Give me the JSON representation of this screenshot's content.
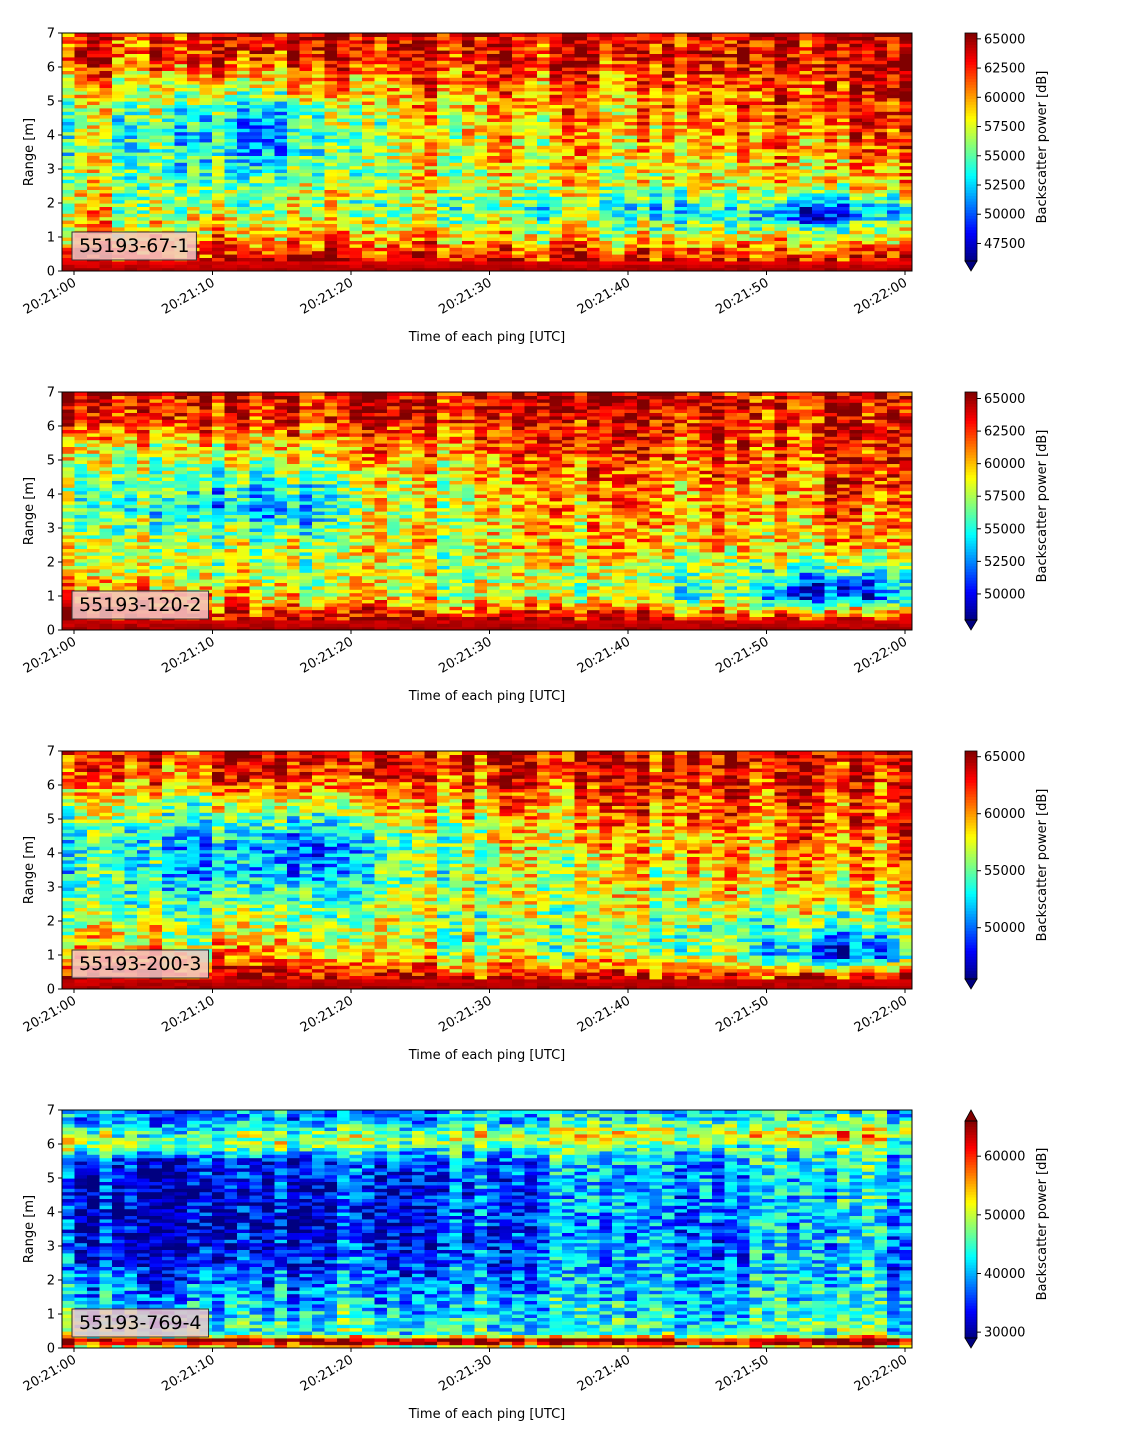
{
  "figure": {
    "x_axis_label": "Time of each ping [UTC]",
    "y_axis_label": "Range [m]",
    "colorbar_label": "Backscatter power [dB]",
    "x_tick_labels": [
      "20:21:00",
      "20:21:10",
      "20:21:20",
      "20:21:30",
      "20:21:40",
      "20:21:50",
      "20:22:00"
    ],
    "y_tick_labels": [
      "0",
      "1",
      "2",
      "3",
      "4",
      "5",
      "6",
      "7"
    ]
  },
  "chart_data": [
    {
      "type": "heatmap",
      "panel_label": "55193-67-1",
      "colormap": "jet",
      "x_range": [
        "20:21:00",
        "20:22:00"
      ],
      "ylim": [
        0,
        7
      ],
      "color_range": [
        46000,
        65500
      ],
      "colorbar_ticks": [
        47500,
        50000,
        52500,
        55000,
        57500,
        60000,
        62500,
        65000
      ],
      "colorbar_extend": "min",
      "xlabel": "Time of each ping [UTC]",
      "ylabel": "Range [m]",
      "zlabel": "Backscatter power [dB]",
      "profile": {
        "range_m": [
          0,
          0.3,
          1,
          1.8,
          2.5,
          3.5,
          4.5,
          5.5,
          6.2,
          7
        ],
        "start_frac": [
          0.97,
          0.9,
          0.72,
          0.62,
          0.56,
          0.5,
          0.52,
          0.65,
          0.82,
          0.88
        ],
        "end_frac": [
          0.97,
          0.9,
          0.6,
          0.3,
          0.62,
          0.75,
          0.82,
          0.85,
          0.9,
          0.9
        ]
      },
      "features": [
        {
          "t_center_s": 14,
          "range_center_m": 4.0,
          "t_width_s": 7,
          "range_width_m": 1.3,
          "delta": -0.3
        },
        {
          "t_center_s": 54,
          "range_center_m": 1.7,
          "t_width_s": 3,
          "range_width_m": 0.35,
          "delta": -0.3
        }
      ]
    },
    {
      "type": "heatmap",
      "panel_label": "55193-120-2",
      "colormap": "jet",
      "x_range": [
        "20:21:00",
        "20:22:00"
      ],
      "ylim": [
        0,
        7
      ],
      "color_range": [
        48000,
        65500
      ],
      "colorbar_ticks": [
        50000,
        52500,
        55000,
        57500,
        60000,
        62500,
        65000
      ],
      "colorbar_extend": "min",
      "xlabel": "Time of each ping [UTC]",
      "ylabel": "Range [m]",
      "zlabel": "Backscatter power [dB]",
      "profile": {
        "range_m": [
          0,
          0.3,
          1,
          1.8,
          2.5,
          3.5,
          4.5,
          5.5,
          6.2,
          7
        ],
        "start_frac": [
          0.97,
          0.92,
          0.75,
          0.6,
          0.55,
          0.45,
          0.48,
          0.62,
          0.82,
          0.88
        ],
        "end_frac": [
          0.97,
          0.92,
          0.35,
          0.5,
          0.7,
          0.8,
          0.85,
          0.88,
          0.9,
          0.9
        ]
      },
      "features": [
        {
          "t_center_s": 14,
          "range_center_m": 3.8,
          "t_width_s": 6,
          "range_width_m": 1.0,
          "delta": -0.25
        },
        {
          "t_center_s": 55,
          "range_center_m": 1.2,
          "t_width_s": 4,
          "range_width_m": 0.5,
          "delta": -0.3
        }
      ]
    },
    {
      "type": "heatmap",
      "panel_label": "55193-200-3",
      "colormap": "jet",
      "x_range": [
        "20:21:00",
        "20:22:00"
      ],
      "ylim": [
        0,
        7
      ],
      "color_range": [
        45500,
        65500
      ],
      "colorbar_ticks": [
        50000,
        55000,
        60000,
        65000
      ],
      "colorbar_extend": "min",
      "xlabel": "Time of each ping [UTC]",
      "ylabel": "Range [m]",
      "zlabel": "Backscatter power [dB]",
      "profile": {
        "range_m": [
          0,
          0.3,
          1,
          1.8,
          2.5,
          3.5,
          4.5,
          5.5,
          6.2,
          7
        ],
        "start_frac": [
          0.97,
          0.92,
          0.75,
          0.58,
          0.5,
          0.4,
          0.42,
          0.58,
          0.78,
          0.86
        ],
        "end_frac": [
          0.97,
          0.92,
          0.4,
          0.45,
          0.62,
          0.72,
          0.8,
          0.85,
          0.88,
          0.9
        ]
      },
      "features": [
        {
          "t_center_s": 16,
          "range_center_m": 4.0,
          "t_width_s": 8,
          "range_width_m": 1.4,
          "delta": -0.3
        },
        {
          "t_center_s": 55,
          "range_center_m": 1.1,
          "t_width_s": 4,
          "range_width_m": 0.5,
          "delta": -0.3
        }
      ]
    },
    {
      "type": "heatmap",
      "panel_label": "55193-769-4",
      "colormap": "jet",
      "x_range": [
        "20:21:00",
        "20:22:00"
      ],
      "ylim": [
        0,
        7
      ],
      "color_range": [
        29000,
        66000
      ],
      "colorbar_ticks": [
        30000,
        40000,
        50000,
        60000
      ],
      "colorbar_extend": "both",
      "xlabel": "Time of each ping [UTC]",
      "ylabel": "Range [m]",
      "zlabel": "Backscatter power [dB]",
      "profile": {
        "range_m": [
          0,
          0.1,
          0.25,
          0.4,
          0.8,
          1.5,
          2.5,
          3.5,
          4.5,
          5.5,
          6.0,
          6.3,
          6.7,
          7
        ],
        "start_frac": [
          0.35,
          0.9,
          0.97,
          0.45,
          0.38,
          0.3,
          0.18,
          0.12,
          0.12,
          0.15,
          0.6,
          0.45,
          0.25,
          0.25
        ],
        "end_frac": [
          0.35,
          0.9,
          0.97,
          0.45,
          0.4,
          0.35,
          0.3,
          0.32,
          0.35,
          0.38,
          0.45,
          0.7,
          0.45,
          0.35
        ]
      },
      "features": [
        {
          "t_center_s": 15,
          "range_center_m": 4.0,
          "t_width_s": 12,
          "range_width_m": 1.5,
          "delta": -0.08
        }
      ]
    }
  ]
}
